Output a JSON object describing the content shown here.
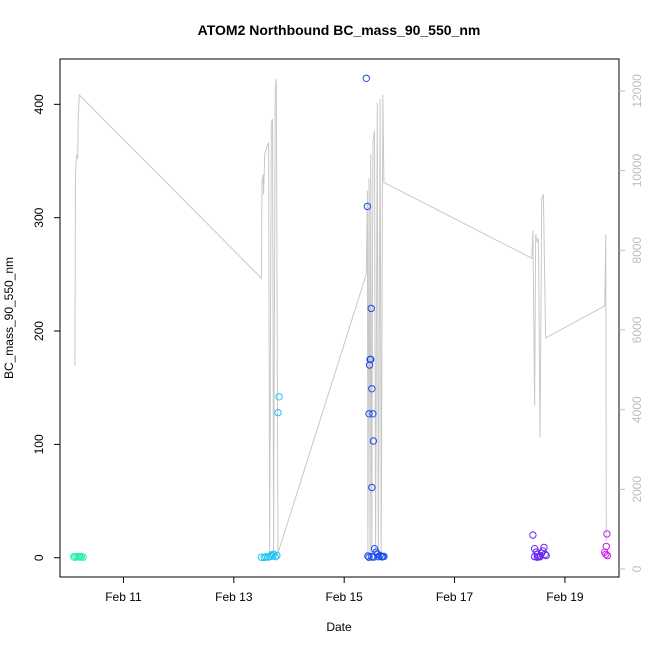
{
  "chart_data": {
    "type": "scatter",
    "title": "ATOM2 Northbound BC_mass_90_550_nm",
    "xlabel": "Date",
    "ylabel": "BC_mass_90_550_nm",
    "x_ticks": [
      "Feb 11",
      "Feb 13",
      "Feb 15",
      "Feb 17",
      "Feb 19"
    ],
    "x_tick_days": [
      11,
      13,
      15,
      17,
      19
    ],
    "xlim": [
      9.85,
      19.98
    ],
    "ylim": [
      -17,
      440
    ],
    "y_ticks": [
      0,
      100,
      200,
      300,
      400
    ],
    "right_axis": {
      "ylim": [
        -200,
        12800
      ],
      "ticks": [
        0,
        2000,
        4000,
        6000,
        8000,
        10000,
        12000
      ],
      "color": "#bdbdbd"
    },
    "grid": false,
    "colors": {
      "line": "#c8c8c8",
      "axis": "#000000",
      "right_axis": "#bdbdbd"
    },
    "altitude_line": {
      "name": "",
      "points": [
        [
          10.12,
          5100
        ],
        [
          10.13,
          9900
        ],
        [
          10.15,
          10400
        ],
        [
          10.17,
          10300
        ],
        [
          10.18,
          11300
        ],
        [
          10.2,
          11900
        ],
        [
          13.5,
          7300
        ],
        [
          13.51,
          9700
        ],
        [
          13.53,
          9900
        ],
        [
          13.54,
          9400
        ],
        [
          13.56,
          10400
        ],
        [
          13.6,
          10600
        ],
        [
          13.63,
          10700
        ],
        [
          13.65,
          400
        ],
        [
          13.68,
          11200
        ],
        [
          13.7,
          11300
        ],
        [
          13.72,
          400
        ],
        [
          13.75,
          12000
        ],
        [
          13.77,
          12300
        ],
        [
          13.8,
          400
        ],
        [
          15.4,
          7400
        ],
        [
          15.42,
          9500
        ],
        [
          15.43,
          200
        ],
        [
          15.45,
          9800
        ],
        [
          15.47,
          200
        ],
        [
          15.48,
          10400
        ],
        [
          15.5,
          200
        ],
        [
          15.52,
          10700
        ],
        [
          15.55,
          11000
        ],
        [
          15.57,
          200
        ],
        [
          15.6,
          11700
        ],
        [
          15.62,
          200
        ],
        [
          15.65,
          11800
        ],
        [
          15.67,
          200
        ],
        [
          15.7,
          11900
        ],
        [
          15.72,
          9700
        ],
        [
          18.4,
          7800
        ],
        [
          18.42,
          8500
        ],
        [
          18.45,
          4100
        ],
        [
          18.47,
          8400
        ],
        [
          18.5,
          8200
        ],
        [
          18.52,
          8300
        ],
        [
          18.55,
          3300
        ],
        [
          18.58,
          9300
        ],
        [
          18.61,
          9400
        ],
        [
          18.65,
          5800
        ],
        [
          19.72,
          6600
        ],
        [
          19.74,
          8400
        ],
        [
          19.75,
          700
        ]
      ]
    },
    "series": [
      {
        "color": "#2af0b2",
        "points": [
          [
            10.1,
            0.8
          ],
          [
            10.12,
            0.5
          ],
          [
            10.15,
            1.0
          ],
          [
            10.18,
            0.7
          ],
          [
            10.2,
            1.2
          ],
          [
            10.22,
            0.6
          ],
          [
            10.24,
            0.9
          ],
          [
            10.27,
            0.5
          ]
        ]
      },
      {
        "color": "#1ec3ef",
        "points": [
          [
            13.5,
            0.5
          ],
          [
            13.55,
            0.3
          ],
          [
            13.58,
            0.8
          ],
          [
            13.62,
            0.6
          ],
          [
            13.65,
            1.1
          ],
          [
            13.68,
            2.5
          ],
          [
            13.7,
            1.5
          ],
          [
            13.72,
            3.0
          ],
          [
            13.75,
            1.0
          ],
          [
            13.78,
            2.0
          ],
          [
            13.8,
            128
          ],
          [
            13.82,
            142
          ]
        ]
      },
      {
        "color": "#1a4df0",
        "points": [
          [
            15.4,
            423
          ],
          [
            15.42,
            310
          ],
          [
            15.43,
            1.5
          ],
          [
            15.45,
            127
          ],
          [
            15.46,
            170
          ],
          [
            15.47,
            175
          ],
          [
            15.48,
            175
          ],
          [
            15.49,
            220
          ],
          [
            15.5,
            149
          ],
          [
            15.52,
            127
          ],
          [
            15.53,
            103
          ],
          [
            15.5,
            62
          ],
          [
            15.55,
            8
          ],
          [
            15.58,
            5
          ],
          [
            15.6,
            3
          ],
          [
            15.62,
            1
          ],
          [
            15.65,
            2
          ],
          [
            15.68,
            1
          ],
          [
            15.7,
            0.8
          ],
          [
            15.72,
            1.2
          ],
          [
            15.45,
            0.5
          ],
          [
            15.5,
            1.0
          ],
          [
            15.53,
            0.6
          ]
        ]
      },
      {
        "color": "#6b2af0",
        "points": [
          [
            18.42,
            20
          ],
          [
            18.45,
            8
          ],
          [
            18.48,
            5
          ],
          [
            18.5,
            3
          ],
          [
            18.52,
            1
          ],
          [
            18.55,
            2
          ],
          [
            18.58,
            4
          ],
          [
            18.6,
            6
          ],
          [
            18.62,
            9
          ],
          [
            18.64,
            3
          ],
          [
            18.66,
            2
          ],
          [
            18.45,
            1
          ],
          [
            18.5,
            0.5
          ],
          [
            18.55,
            0.8
          ]
        ]
      },
      {
        "color": "#d01bf0",
        "points": [
          [
            19.72,
            5
          ],
          [
            19.74,
            3
          ],
          [
            19.75,
            10
          ],
          [
            19.76,
            21
          ],
          [
            19.77,
            2
          ]
        ]
      }
    ]
  }
}
